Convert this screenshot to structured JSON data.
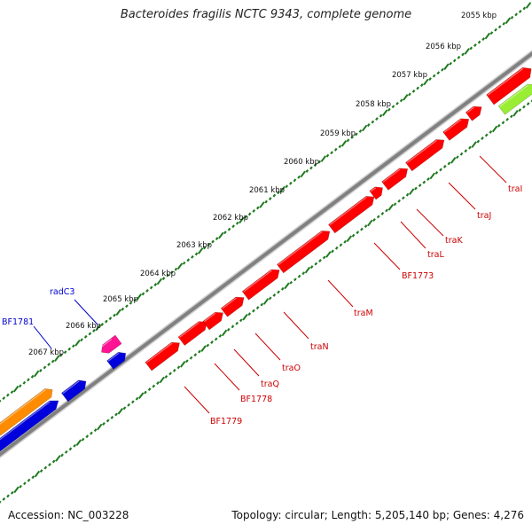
{
  "title": "Bacteroides fragilis NCTC 9343, complete genome",
  "footer": {
    "accession": "Accession: NC_003228",
    "summary": "Topology: circular; Length: 5,205,140 bp; Genes: 4,276"
  },
  "scale_labels": [
    "2055 kbp",
    "2056 kbp",
    "2057 kbp",
    "2058 kbp",
    "2059 kbp",
    "2060 kbp",
    "2061 kbp",
    "2062 kbp",
    "2063 kbp",
    "2064 kbp",
    "2065 kbp",
    "2066 kbp",
    "2067 kbp"
  ],
  "genes_above": [
    {
      "label": "radC3"
    },
    {
      "label": "BF1781"
    }
  ],
  "genes_below": [
    {
      "label": "traI"
    },
    {
      "label": "traJ"
    },
    {
      "label": "traK"
    },
    {
      "label": "traL"
    },
    {
      "label": "BF1773"
    },
    {
      "label": "traM"
    },
    {
      "label": "traN"
    },
    {
      "label": "traO"
    },
    {
      "label": "traQ"
    },
    {
      "label": "BF1778"
    },
    {
      "label": "BF1779"
    }
  ],
  "colors": {
    "backbone": "#888888",
    "ticks": "#1e7a1e",
    "forward_gene": "#ff0000",
    "reverse_gene": "#0000dd",
    "rrna_gene": "#ff1493",
    "orange_gene": "#ff8c00",
    "lime_gene": "#99ee33",
    "label_forward": "#cc0000",
    "label_reverse": "#0000cc"
  }
}
